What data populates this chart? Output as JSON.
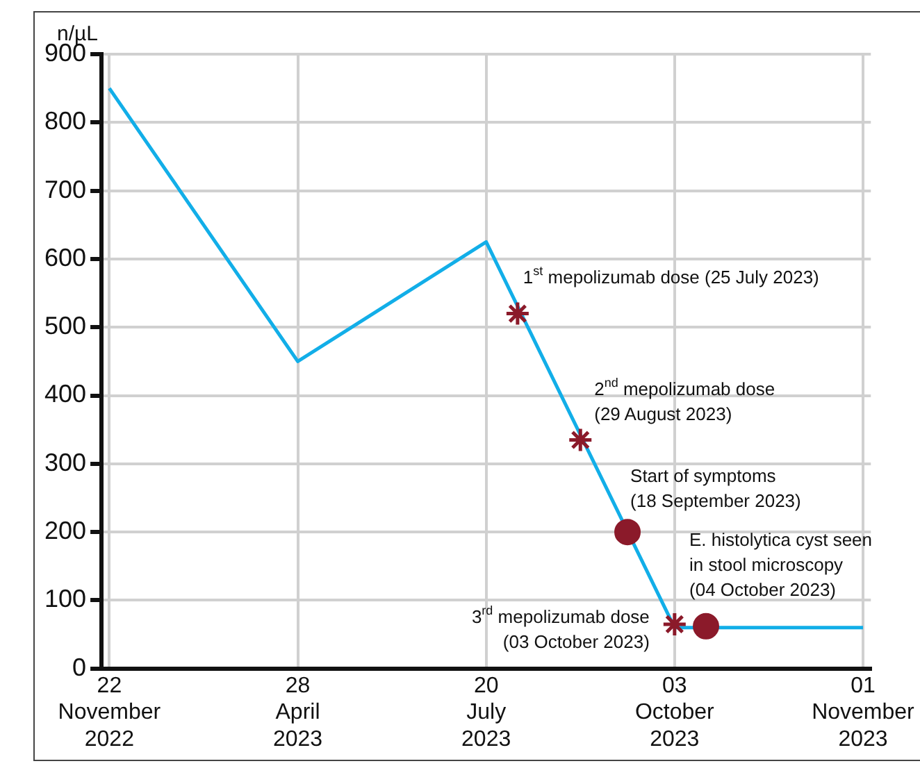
{
  "chart_data": {
    "type": "line",
    "ylabel": "n/µL",
    "categories": [
      "22 November 2022",
      null,
      null,
      null,
      null,
      null,
      null,
      null,
      null,
      null,
      null,
      null,
      "28 April 2023",
      null,
      null,
      null,
      null,
      null,
      null,
      null,
      null,
      null,
      null,
      null,
      "20 July 2023",
      null,
      null,
      null,
      null,
      null,
      null,
      null,
      null,
      null,
      null,
      null,
      "03 October 2023",
      null,
      null,
      null,
      null,
      null,
      null,
      null,
      null,
      null,
      null,
      null,
      "01 November 2023"
    ],
    "ylim": [
      0,
      900
    ],
    "yticks": [
      0,
      100,
      200,
      300,
      400,
      500,
      600,
      700,
      800,
      900
    ],
    "series": [
      {
        "color": "#12aee8",
        "marker": "none",
        "values": [
          850,
          null,
          null,
          null,
          null,
          null,
          null,
          null,
          null,
          null,
          null,
          null,
          450,
          null,
          null,
          null,
          null,
          null,
          null,
          null,
          null,
          null,
          null,
          null,
          625,
          null,
          null,
          null,
          null,
          null,
          null,
          null,
          null,
          null,
          null,
          null,
          60,
          null,
          null,
          null,
          null,
          null,
          null,
          null,
          null,
          null,
          null,
          null,
          60
        ]
      },
      {
        "type": "scatter",
        "color": "#8b1a2a",
        "marker": "cross",
        "values": [
          null,
          null,
          null,
          null,
          null,
          null,
          null,
          null,
          null,
          null,
          null,
          null,
          null,
          null,
          null,
          null,
          null,
          null,
          null,
          null,
          null,
          null,
          null,
          null,
          null,
          null,
          520,
          null,
          null,
          null,
          335,
          null,
          null,
          null,
          null,
          null,
          65,
          null,
          null,
          null,
          null,
          null,
          null,
          null,
          null,
          null,
          null,
          null,
          null
        ]
      },
      {
        "type": "scatter",
        "color": "#8b1a2a",
        "marker": "circle",
        "values": [
          null,
          null,
          null,
          null,
          null,
          null,
          null,
          null,
          null,
          null,
          null,
          null,
          null,
          null,
          null,
          null,
          null,
          null,
          null,
          null,
          null,
          null,
          null,
          null,
          null,
          null,
          null,
          null,
          null,
          null,
          null,
          null,
          null,
          200,
          null,
          null,
          null,
          null,
          62,
          null,
          null,
          null,
          null,
          null,
          null,
          null,
          null,
          null,
          null
        ]
      }
    ],
    "annotations": [
      "1$^{st}$ mepolizumab dose (25 July 2023)",
      "2$^{nd}$ mepolizumab dose\n(29 August 2023)",
      "Start of symptoms\n(18 September 2023)",
      "3$^{rd}$ mepolizumab dose\n(03 October 2023)",
      "E. histolytica cyst seen\nin stool microscopy\n(04 October 2023)"
    ],
    "grid": true,
    "legend": false
  }
}
